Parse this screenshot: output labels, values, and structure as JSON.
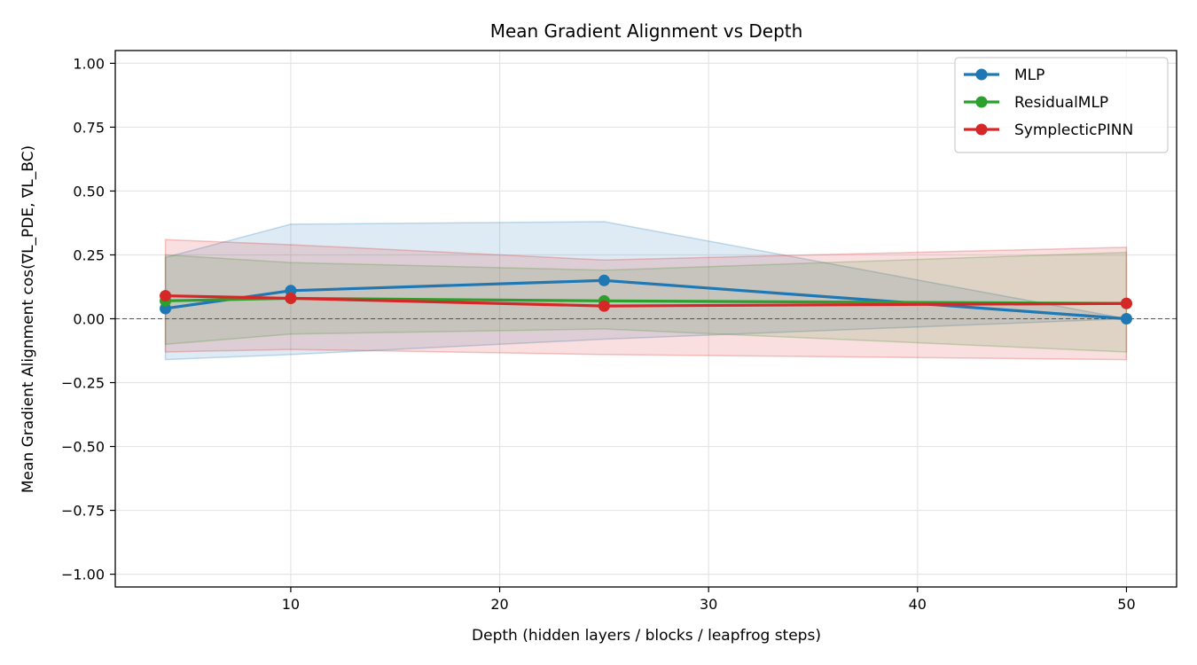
{
  "chart_data": {
    "type": "line",
    "title": "Mean Gradient Alignment vs Depth",
    "xlabel": "Depth (hidden layers / blocks / leapfrog steps)",
    "ylabel": "Mean Gradient Alignment  cos(∇L_PDE, ∇L_BC)",
    "xlim": [
      1.6,
      52.4
    ],
    "ylim": [
      -1.05,
      1.05
    ],
    "xticks": [
      10,
      20,
      30,
      40,
      50
    ],
    "yticks": [
      -1.0,
      -0.75,
      -0.5,
      -0.25,
      0.0,
      0.25,
      0.5,
      0.75,
      1.0
    ],
    "ytick_labels": [
      "−1.00",
      "−0.75",
      "−0.50",
      "−0.25",
      "0.00",
      "0.25",
      "0.50",
      "0.75",
      "1.00"
    ],
    "grid": true,
    "legend_position": "top-right",
    "reference_line": 0,
    "x": [
      4,
      10,
      25,
      50
    ],
    "series": [
      {
        "name": "MLP",
        "color": "#1f77b4",
        "values": [
          0.04,
          0.11,
          0.15,
          0.0
        ],
        "upper": [
          0.24,
          0.37,
          0.38,
          0.0
        ],
        "lower": [
          -0.16,
          -0.14,
          -0.08,
          0.0
        ]
      },
      {
        "name": "ResidualMLP",
        "color": "#2ca02c",
        "values": [
          0.07,
          0.08,
          0.07,
          0.06
        ],
        "upper": [
          0.25,
          0.22,
          0.19,
          0.26
        ],
        "lower": [
          -0.1,
          -0.06,
          -0.04,
          -0.13
        ]
      },
      {
        "name": "SymplecticPINN",
        "color": "#d62728",
        "values": [
          0.09,
          0.08,
          0.05,
          0.06
        ],
        "upper": [
          0.31,
          0.29,
          0.23,
          0.28
        ],
        "lower": [
          -0.13,
          -0.12,
          -0.14,
          -0.16
        ]
      }
    ]
  }
}
